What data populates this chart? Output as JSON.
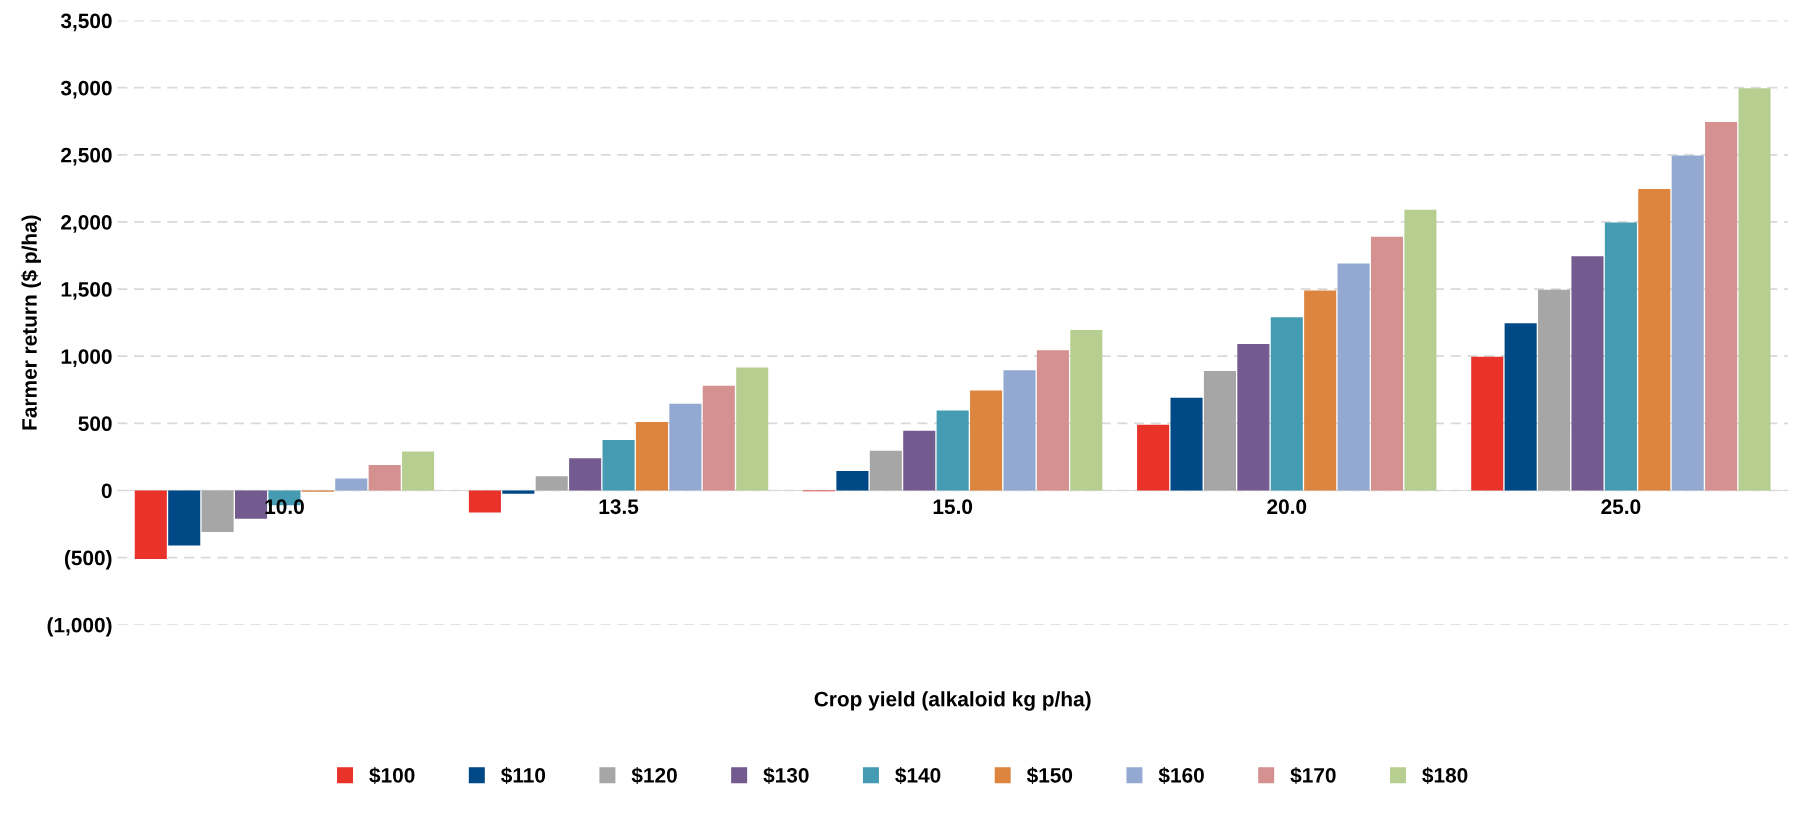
{
  "chart_data": {
    "type": "bar",
    "xlabel": "Crop yield (alkaloid kg p/ha)",
    "ylabel": "Farmer return ($ p/ha)",
    "categories": [
      "10.0",
      "13.5",
      "15.0",
      "20.0",
      "25.0"
    ],
    "series": [
      {
        "name": "$100",
        "color": "#e8322a",
        "values": [
          -510,
          -165,
          -5,
          490,
          995
        ]
      },
      {
        "name": "$110",
        "color": "#004987",
        "values": [
          -410,
          -25,
          145,
          690,
          1245
        ]
      },
      {
        "name": "$120",
        "color": "#a6a6a6",
        "values": [
          -310,
          105,
          295,
          890,
          1495
        ]
      },
      {
        "name": "$130",
        "color": "#735a8f",
        "values": [
          -210,
          240,
          445,
          1090,
          1745
        ]
      },
      {
        "name": "$140",
        "color": "#449bb2",
        "values": [
          -110,
          375,
          595,
          1290,
          1995
        ]
      },
      {
        "name": "$150",
        "color": "#dd843f",
        "values": [
          -10,
          510,
          745,
          1490,
          2245
        ]
      },
      {
        "name": "$160",
        "color": "#94a9d2",
        "values": [
          90,
          645,
          895,
          1690,
          2495
        ]
      },
      {
        "name": "$170",
        "color": "#d49190",
        "values": [
          190,
          780,
          1045,
          1890,
          2745
        ]
      },
      {
        "name": "$180",
        "color": "#b6cf91",
        "values": [
          290,
          915,
          1195,
          2090,
          2995
        ]
      }
    ],
    "ylim": [
      -1000,
      3500
    ],
    "yticks": [
      {
        "value": -1000,
        "label": "(1,000)"
      },
      {
        "value": -500,
        "label": "(500)"
      },
      0,
      {
        "value": 500,
        "label": "500"
      },
      {
        "value": 1000,
        "label": "1,000"
      },
      {
        "value": 1500,
        "label": "1,500"
      },
      {
        "value": 2000,
        "label": "2,000"
      },
      {
        "value": 2500,
        "label": "2,500"
      },
      {
        "value": 3000,
        "label": "3,000"
      },
      {
        "value": 3500,
        "label": "3,500"
      }
    ],
    "grid": "y",
    "legend": "bottom"
  }
}
